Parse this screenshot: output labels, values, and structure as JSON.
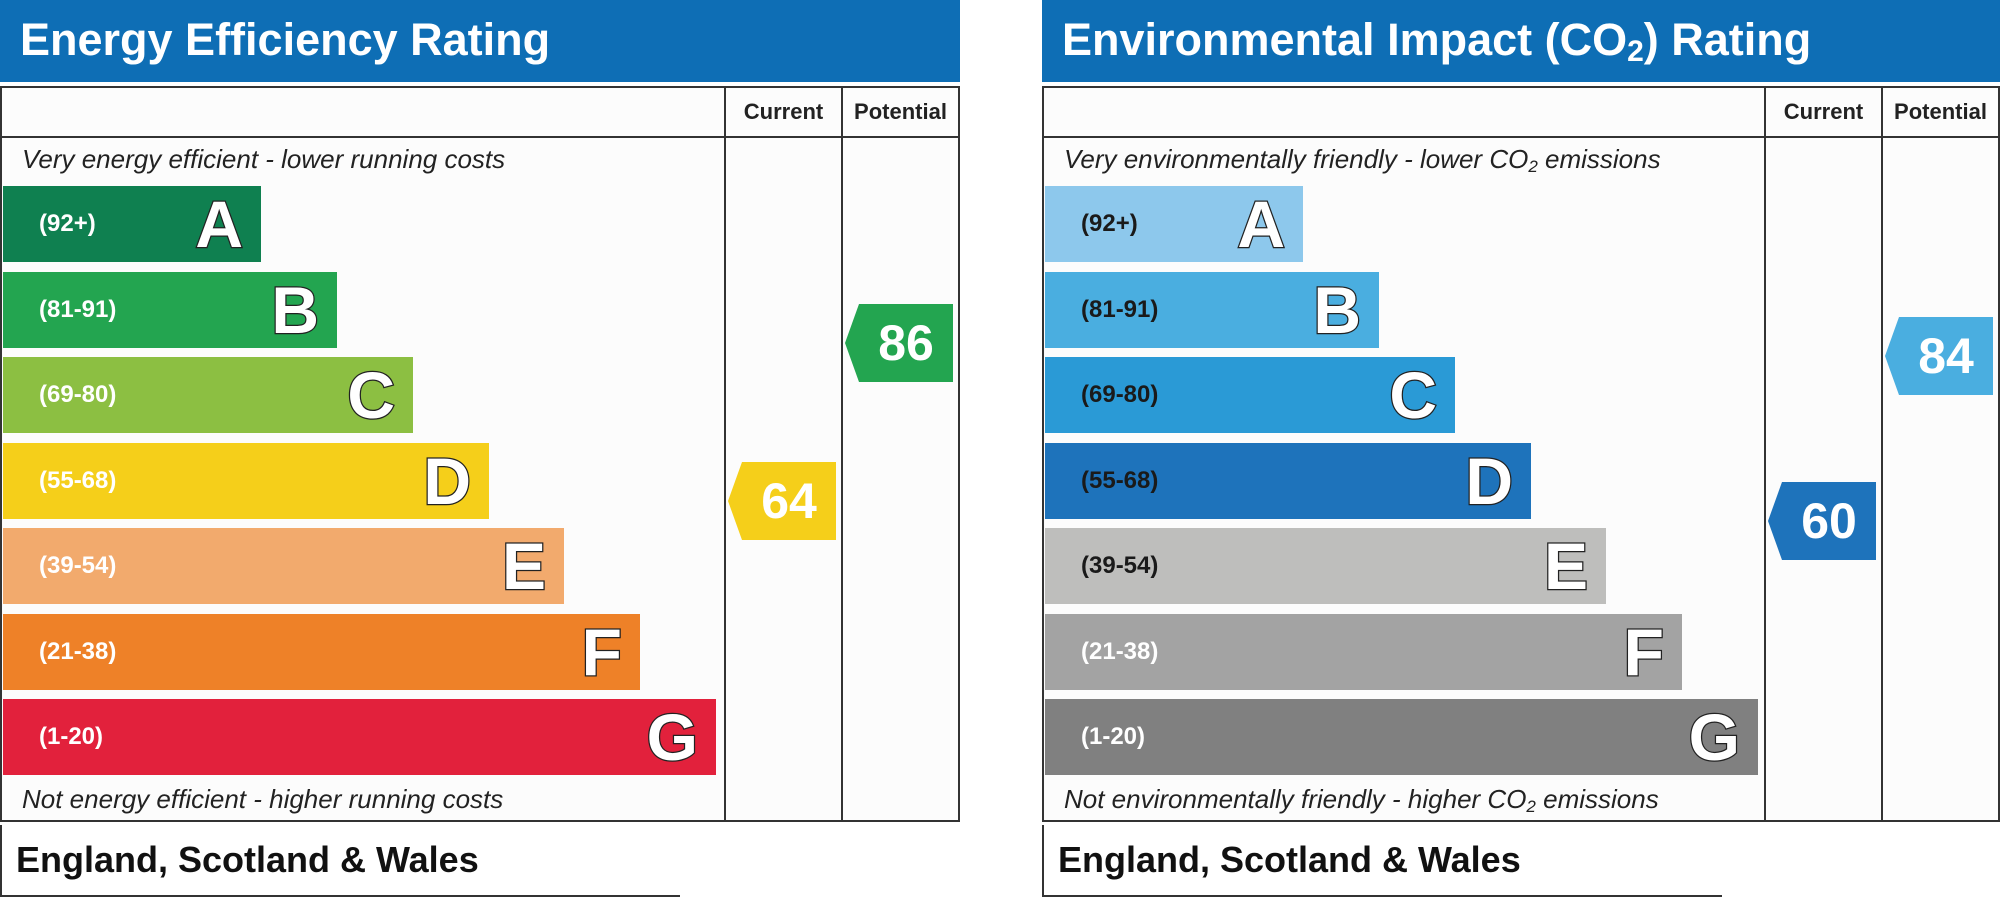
{
  "chart_data": [
    {
      "type": "bar",
      "title": "Energy Efficiency Rating",
      "columns": [
        "Current",
        "Potential"
      ],
      "top_caption": "Very energy efficient - lower running costs",
      "bottom_caption": "Not energy efficient - higher running costs",
      "bands": [
        {
          "range": "(92+)",
          "letter": "A",
          "color": "#0f8050"
        },
        {
          "range": "(81-91)",
          "letter": "B",
          "color": "#23a550"
        },
        {
          "range": "(69-80)",
          "letter": "C",
          "color": "#8cbf42"
        },
        {
          "range": "(55-68)",
          "letter": "D",
          "color": "#f5cf1a"
        },
        {
          "range": "(39-54)",
          "letter": "E",
          "color": "#f2aa6d"
        },
        {
          "range": "(21-38)",
          "letter": "F",
          "color": "#ee8128"
        },
        {
          "range": "(1-20)",
          "letter": "G",
          "color": "#e2213c"
        }
      ],
      "current": {
        "value": 64,
        "color": "#f5cf1a"
      },
      "potential": {
        "value": 86,
        "color": "#23a550"
      },
      "footer": "England, Scotland & Wales"
    },
    {
      "type": "bar",
      "title": "Environmental Impact (CO₂) Rating",
      "columns": [
        "Current",
        "Potential"
      ],
      "top_caption": "Very environmentally friendly - lower CO₂ emissions",
      "bottom_caption": "Not environmentally friendly - higher CO₂ emissions",
      "bands": [
        {
          "range": "(92+)",
          "letter": "A",
          "color": "#8dc8ec"
        },
        {
          "range": "(81-91)",
          "letter": "B",
          "color": "#4aaee0"
        },
        {
          "range": "(69-80)",
          "letter": "C",
          "color": "#2a9ad6"
        },
        {
          "range": "(55-68)",
          "letter": "D",
          "color": "#1e73bb"
        },
        {
          "range": "(39-54)",
          "letter": "E",
          "color": "#bebebc"
        },
        {
          "range": "(21-38)",
          "letter": "F",
          "color": "#a3a3a3"
        },
        {
          "range": "(1-20)",
          "letter": "G",
          "color": "#808080"
        }
      ],
      "current": {
        "value": 60,
        "color": "#1e73bb"
      },
      "potential": {
        "value": 84,
        "color": "#4aaee0"
      },
      "footer": "England, Scotland & Wales"
    }
  ]
}
